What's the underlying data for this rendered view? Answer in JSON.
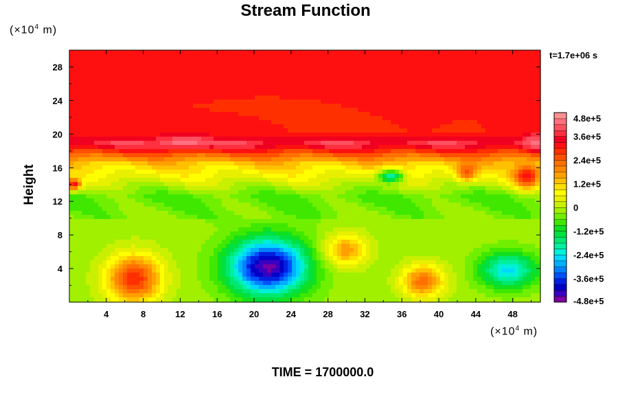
{
  "chart_data": {
    "type": "heatmap",
    "title": "Stream Function",
    "ylabel": "Height",
    "y_unit": [
      "(×10",
      "4",
      " m)"
    ],
    "x_unit": [
      "(×10",
      "4",
      " m)"
    ],
    "time_stamp": "t=1.7e+06 s",
    "footer": "TIME = 1700000.0",
    "xlim": [
      0,
      51
    ],
    "ylim": [
      0,
      30
    ],
    "x_ticks": [
      4,
      8,
      12,
      16,
      20,
      24,
      28,
      32,
      36,
      40,
      44,
      48
    ],
    "y_ticks": [
      4,
      8,
      12,
      16,
      20,
      24,
      28
    ],
    "x_tick_labels": [
      "4",
      "8",
      "12",
      "16",
      "20",
      "24",
      "28",
      "32",
      "36",
      "40",
      "44",
      "48"
    ],
    "y_tick_labels": [
      "4",
      "8",
      "12",
      "16",
      "20",
      "24",
      "28"
    ],
    "colorbar": {
      "min": -480000,
      "max": 480000,
      "levels": 32,
      "labels": [
        "4.8e+5",
        "3.6e+5",
        "2.4e+5",
        "1.2e+5",
        "0",
        "-1.2e+5",
        "-2.4e+5",
        "-3.6e+5",
        "-4.8e+5"
      ],
      "label_values": [
        480000,
        360000,
        240000,
        120000,
        0,
        -120000,
        -240000,
        -360000,
        -480000
      ]
    },
    "field": {
      "background": 300000,
      "top_layer": {
        "y_from": 20,
        "value": 300000
      },
      "bands": [
        {
          "y": 18.8,
          "value": 380000
        },
        {
          "y": 16.5,
          "value": 130000
        },
        {
          "y": 12.5,
          "value": -60000
        },
        {
          "y": 8.5,
          "value": -15000
        }
      ],
      "features": [
        {
          "x": 7,
          "y": 2.8,
          "rx": 3.3,
          "ry": 3.2,
          "value": 300000
        },
        {
          "x": 21.5,
          "y": 4.2,
          "rx": 4.8,
          "ry": 3.8,
          "value": -460000
        },
        {
          "x": 30,
          "y": 6.2,
          "rx": 2.6,
          "ry": 2.2,
          "value": 170000
        },
        {
          "x": 38.3,
          "y": 2.5,
          "rx": 2.6,
          "ry": 2.2,
          "value": 230000
        },
        {
          "x": 47.5,
          "y": 3.8,
          "rx": 3.5,
          "ry": 2.4,
          "value": -250000
        },
        {
          "x": 34.8,
          "y": 15,
          "rx": 1.6,
          "ry": 0.9,
          "value": -200000
        },
        {
          "x": 43,
          "y": 15.5,
          "rx": 1.3,
          "ry": 1.2,
          "value": 260000
        },
        {
          "x": 49.5,
          "y": 15,
          "rx": 1.6,
          "ry": 1.6,
          "value": 330000
        },
        {
          "x": 50.5,
          "y": 19,
          "rx": 1.3,
          "ry": 1.2,
          "value": 430000
        },
        {
          "x": 12.5,
          "y": 19,
          "rx": 3,
          "ry": 0.8,
          "value": 440000
        },
        {
          "x": 0.5,
          "y": 14,
          "rx": 0.9,
          "ry": 0.8,
          "value": 320000
        }
      ]
    }
  },
  "colors": {
    "palette": [
      "#7a00a0",
      "#3a00c0",
      "#0000c8",
      "#0020e0",
      "#0050ff",
      "#0080ff",
      "#00b0ff",
      "#00d8ff",
      "#00f0d8",
      "#00f0a0",
      "#00e870",
      "#00e040",
      "#10e020",
      "#40e800",
      "#70f000",
      "#a0f000",
      "#c8f000",
      "#e8f000",
      "#ffff00",
      "#ffe000",
      "#ffc000",
      "#ffa000",
      "#ff8800",
      "#ff7000",
      "#ff5000",
      "#ff3000",
      "#ff1010",
      "#f00020",
      "#ff3040",
      "#ff5060",
      "#ff7080",
      "#ff9090"
    ]
  }
}
